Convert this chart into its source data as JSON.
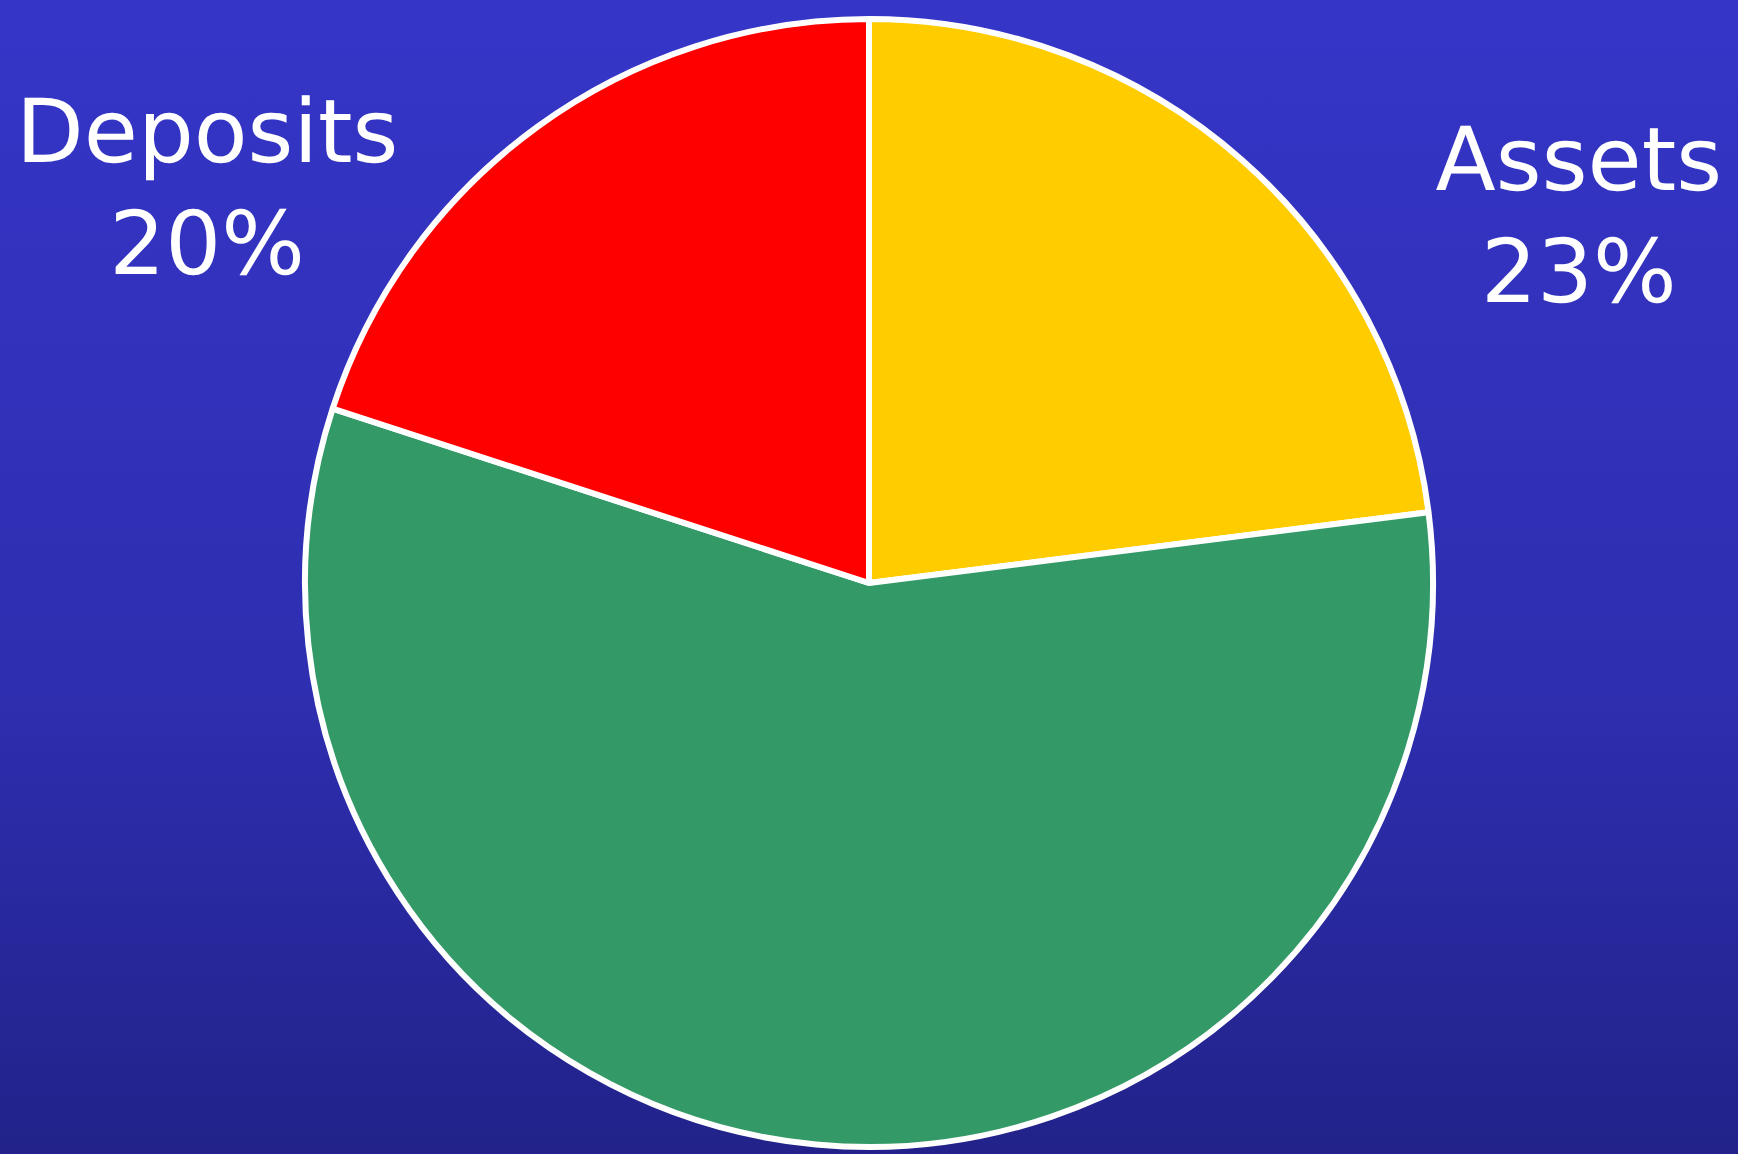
{
  "chart_data": {
    "type": "pie",
    "categories": [
      "Assets",
      null,
      "Deposits"
    ],
    "values": [
      23,
      57,
      20
    ],
    "colors": [
      "#ffcc00",
      "#339966",
      "#ff0000"
    ],
    "value_labels": [
      "23%",
      null,
      "20%"
    ],
    "legend": false
  }
}
